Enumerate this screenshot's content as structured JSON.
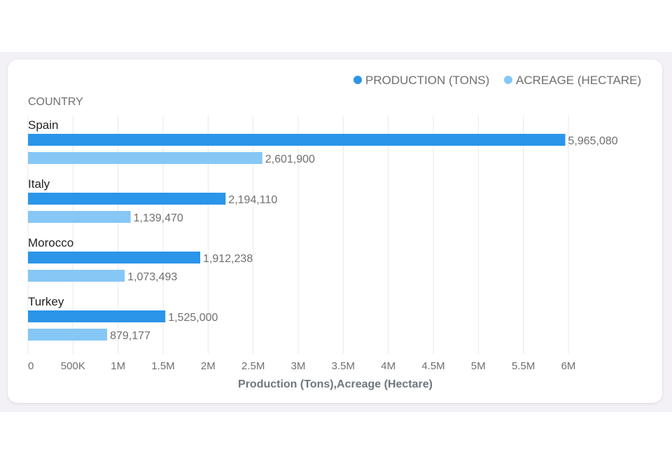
{
  "colors": {
    "production": "#2b95ea",
    "acreage": "#86c7f6",
    "grid": "#e8e8e8",
    "text_dark": "#222222",
    "text_muted": "#6f6f6f",
    "axis_title": "#6e7680"
  },
  "chart_data": {
    "type": "bar",
    "orientation": "horizontal",
    "category_axis_label": "COUNTRY",
    "categories": [
      "Spain",
      "Italy",
      "Morocco",
      "Turkey"
    ],
    "series": [
      {
        "name": "PRODUCTION (TONS)",
        "values": [
          5965080,
          2194110,
          1912238,
          1525000
        ],
        "value_labels": [
          "5,965,080",
          "2,194,110",
          "1,912,238",
          "1,525,000"
        ]
      },
      {
        "name": "ACREAGE (HECTARE)",
        "values": [
          2601900,
          1139470,
          1073493,
          879177
        ],
        "value_labels": [
          "2,601,900",
          "1,139,470",
          "1,073,493",
          "879,177"
        ]
      }
    ],
    "xlim": [
      0,
      6000000
    ],
    "x_ticks": [
      0,
      500000,
      1000000,
      1500000,
      2000000,
      2500000,
      3000000,
      3500000,
      4000000,
      4500000,
      5000000,
      5500000,
      6000000
    ],
    "x_tick_labels": [
      "0",
      "500K",
      "1M",
      "1.5M",
      "2M",
      "2.5M",
      "3M",
      "3.5M",
      "4M",
      "4.5M",
      "5M",
      "5.5M",
      "6M"
    ],
    "xlabel": "Production (Tons),Acreage (Hectare)",
    "grid": true,
    "legend": "top-right"
  }
}
